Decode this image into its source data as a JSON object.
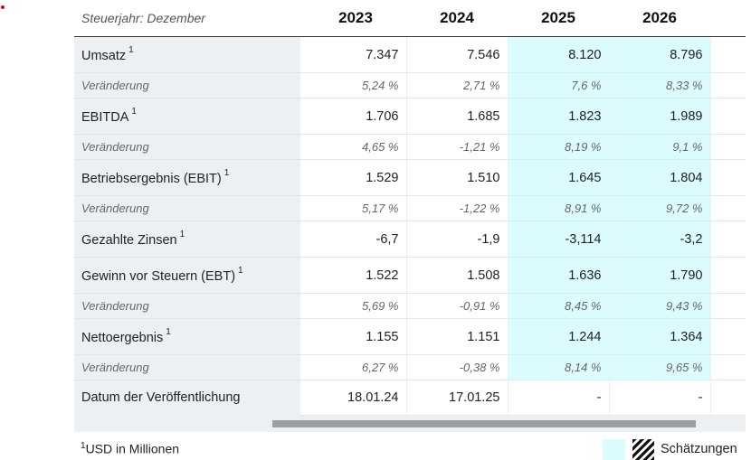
{
  "header": {
    "label": "Steuerjahr: Dezember",
    "years": [
      "2023",
      "2024",
      "2025",
      "2026"
    ]
  },
  "rows": [
    {
      "type": "main",
      "label": "Umsatz",
      "note": "1",
      "values": [
        "7.347",
        "7.546",
        "8.120",
        "8.796"
      ]
    },
    {
      "type": "chg",
      "label": "Veränderung",
      "values": [
        "5,24 %",
        "2,71 %",
        "7,6 %",
        "8,33 %"
      ]
    },
    {
      "type": "main",
      "label": "EBITDA",
      "note": "1",
      "values": [
        "1.706",
        "1.685",
        "1.823",
        "1.989"
      ]
    },
    {
      "type": "chg",
      "label": "Veränderung",
      "values": [
        "4,65 %",
        "-1,21 %",
        "8,19 %",
        "9,1 %"
      ]
    },
    {
      "type": "main",
      "label": "Betriebsergebnis (EBIT)",
      "note": "1",
      "values": [
        "1.529",
        "1.510",
        "1.645",
        "1.804"
      ]
    },
    {
      "type": "chg",
      "label": "Veränderung",
      "values": [
        "5,17 %",
        "-1,22 %",
        "8,91 %",
        "9,72 %"
      ]
    },
    {
      "type": "main",
      "label": "Gezahlte Zinsen",
      "note": "1",
      "values": [
        "-6,7",
        "-1,9",
        "-3,114",
        "-3,2"
      ]
    },
    {
      "type": "main",
      "label": "Gewinn vor Steuern (EBT)",
      "note": "1",
      "values": [
        "1.522",
        "1.508",
        "1.636",
        "1.790"
      ]
    },
    {
      "type": "chg",
      "label": "Veränderung",
      "values": [
        "5,69 %",
        "-0,91 %",
        "8,45 %",
        "9,43 %"
      ]
    },
    {
      "type": "main",
      "label": "Nettoergebnis",
      "note": "1",
      "values": [
        "1.155",
        "1.151",
        "1.244",
        "1.364"
      ]
    },
    {
      "type": "chg",
      "label": "Veränderung",
      "values": [
        "6,27 %",
        "-0,38 %",
        "8,14 %",
        "9,65 %"
      ]
    },
    {
      "type": "date",
      "label": "Datum der Veröffentlichung",
      "values": [
        "18.01.24",
        "17.01.25",
        "-",
        "-"
      ]
    }
  ],
  "estimate_columns": [
    2,
    3
  ],
  "footnote": {
    "mark": "1",
    "text": "USD in Millionen"
  },
  "legend": {
    "label": "Schätzungen",
    "estimate_color": "#dcfbff"
  },
  "icons": {
    "legend_hatch": "hatch-pattern-icon",
    "marker": "red-dot-icon"
  }
}
